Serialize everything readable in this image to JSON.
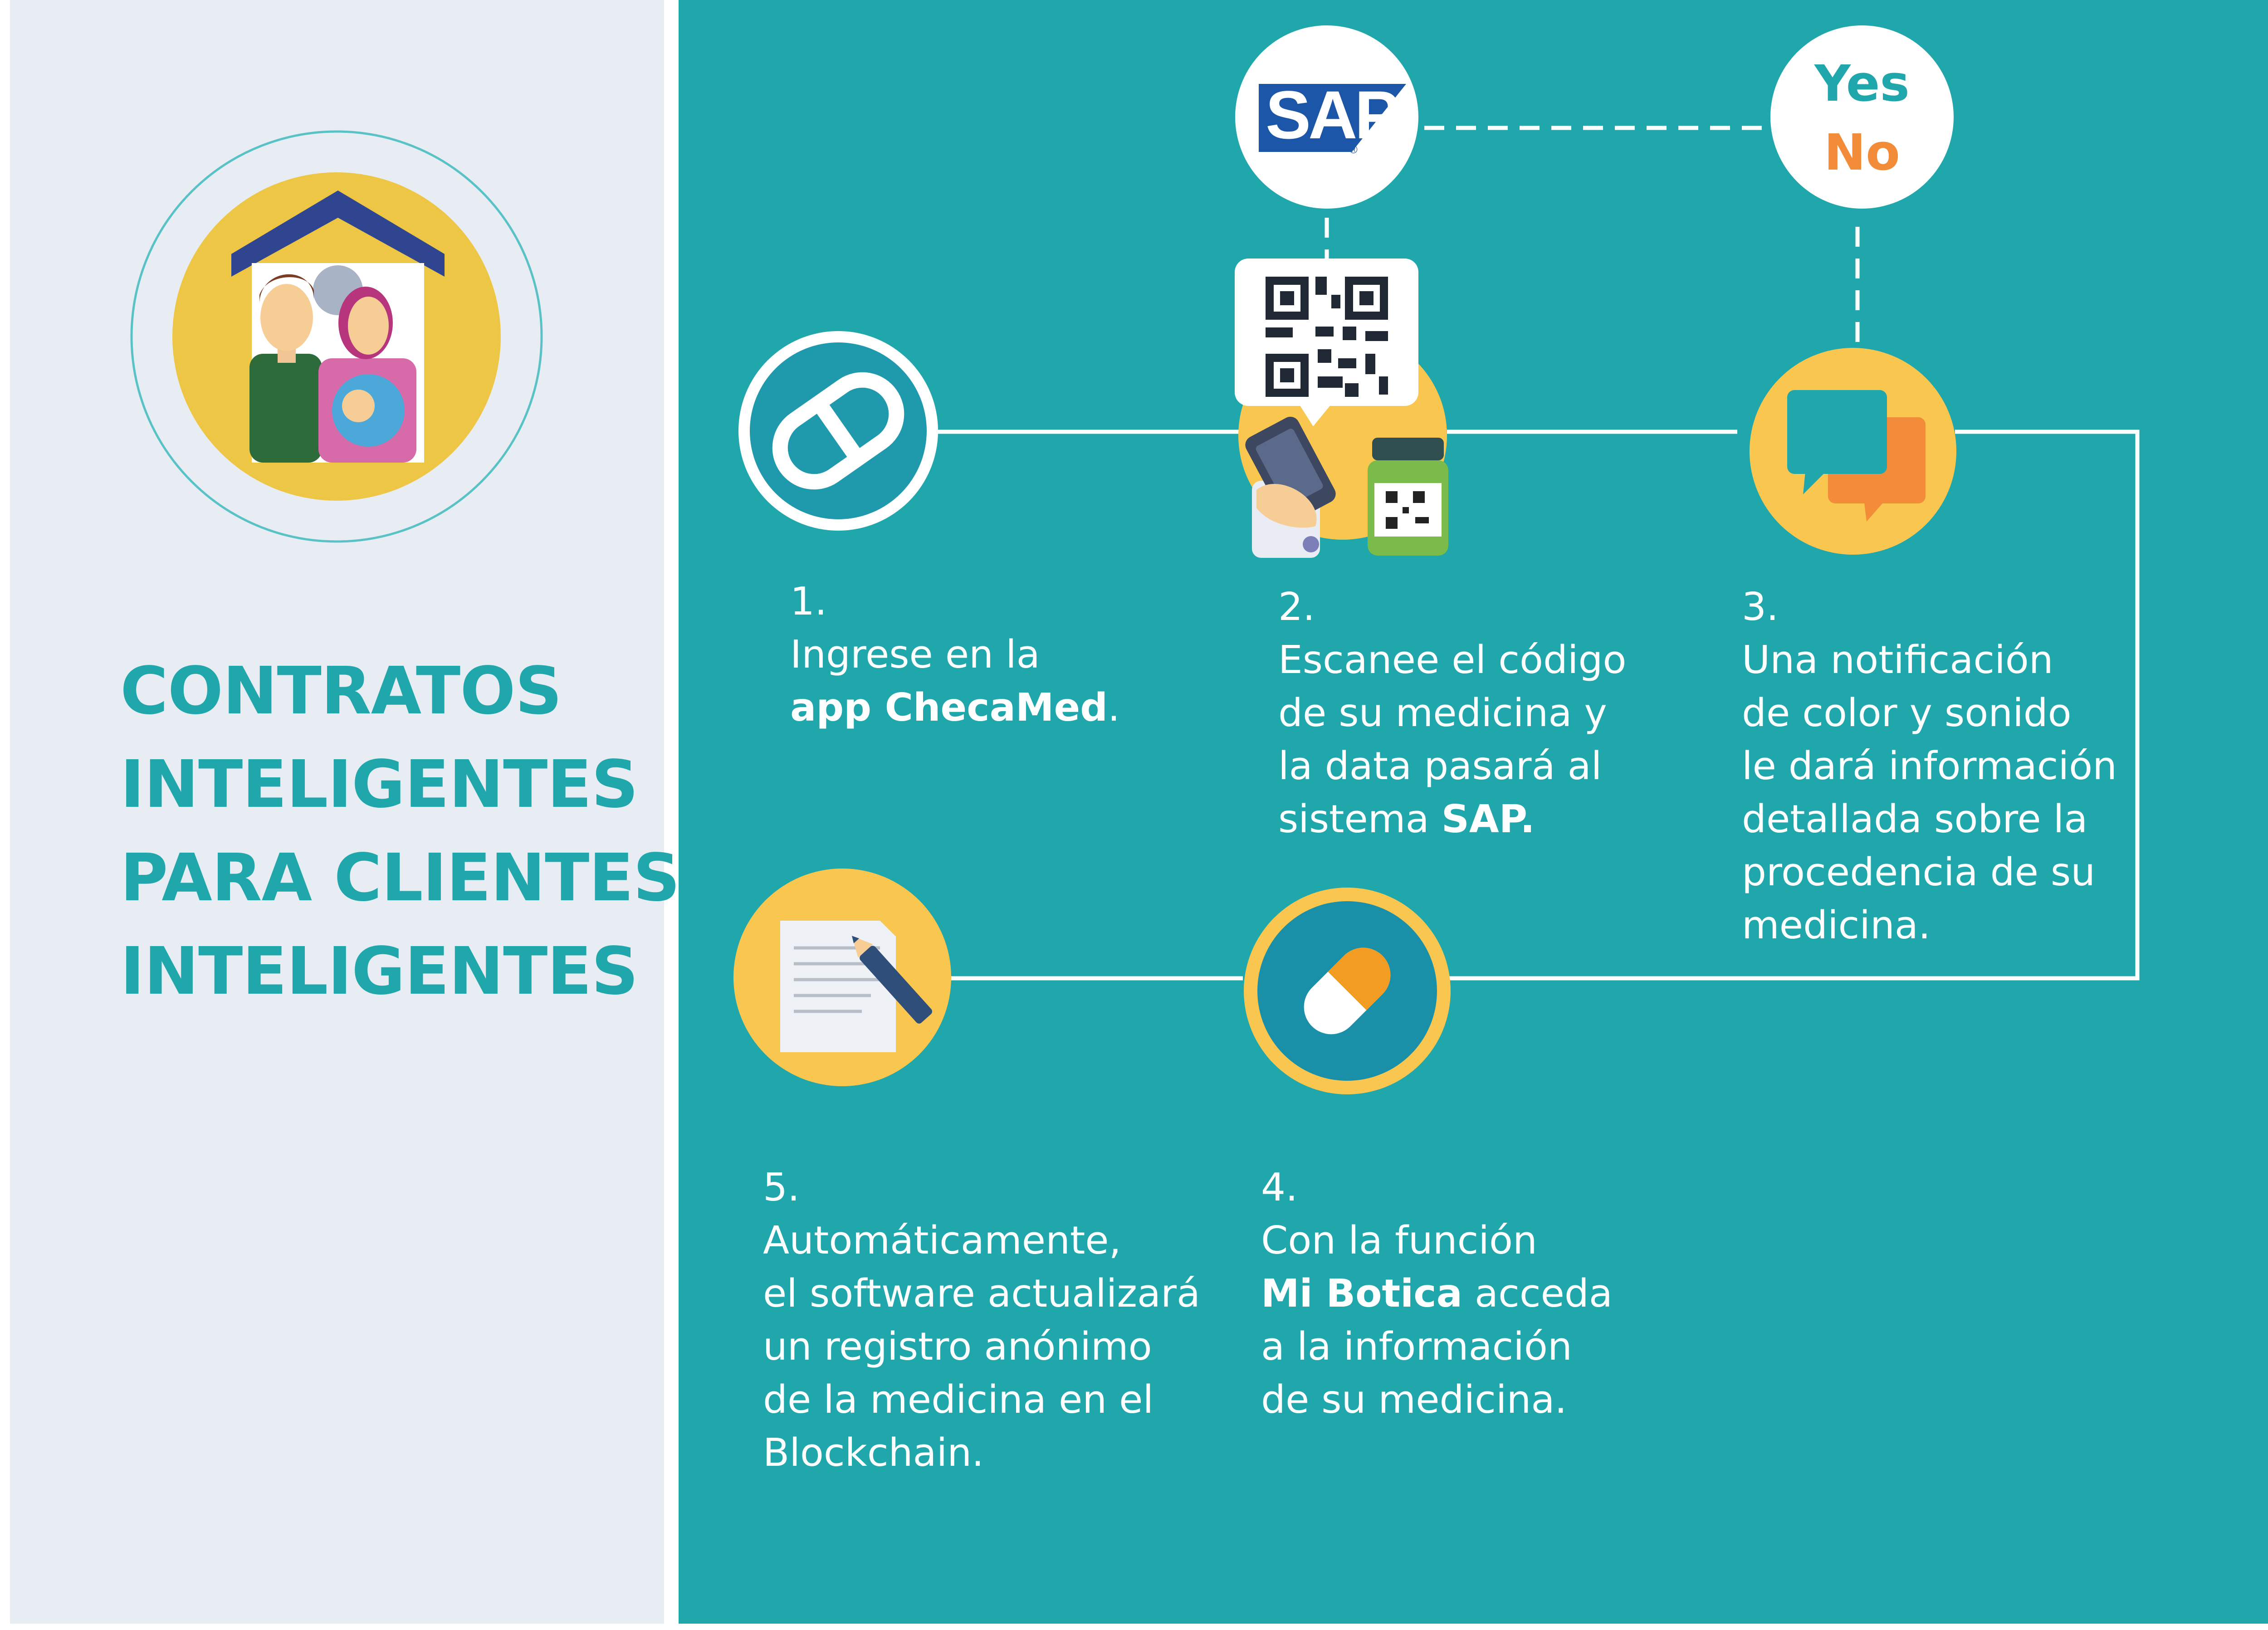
{
  "title": {
    "lines": [
      "CONTRATOS",
      "INTELIGENTES",
      "PARA CLIENTES",
      "INTELIGENTES"
    ]
  },
  "decision": {
    "yes": "Yes",
    "no": "No"
  },
  "logo": {
    "sap_text": "SAP",
    "registered": "®"
  },
  "steps": [
    {
      "number": "1.",
      "line1": "Ingrese en la",
      "line2_bold": "app ChecaMed",
      "line2_tail": "."
    },
    {
      "number": "2.",
      "line1": "Escanee el código",
      "line2": "de su medicina y",
      "line3": "la data pasará al",
      "line4_pre": "sistema ",
      "line4_bold": "SAP."
    },
    {
      "number": "3.",
      "line1": "Una notificación",
      "line2": "de color y sonido",
      "line3": "le dará información",
      "line4": "detallada sobre la",
      "line5": "procedencia de su",
      "line6": "medicina."
    },
    {
      "number": "4.",
      "line1": "Con la función",
      "line2_bold": "Mi Botica",
      "line2_tail": " acceda",
      "line3": "a la información",
      "line4": "de su medicina."
    },
    {
      "number": "5.",
      "line1": "Automáticamente,",
      "line2": "el software actualizará",
      "line3": "un registro anónimo",
      "line4": "de la medicina en el",
      "line5": "Blockchain."
    }
  ],
  "icons": [
    "family-home-icon",
    "checamed-logo-icon",
    "sap-logo-icon",
    "qr-code-icon",
    "phone-scan-icon",
    "medicine-bottle-icon",
    "chat-bubbles-icon",
    "pill-icon",
    "document-pen-icon"
  ],
  "colors": {
    "teal": "#1fa7ac",
    "panel": "#e8edf3",
    "yellow": "#f9c74f",
    "orange": "#f28c38",
    "navy": "#1d3a8a",
    "white": "#ffffff"
  }
}
